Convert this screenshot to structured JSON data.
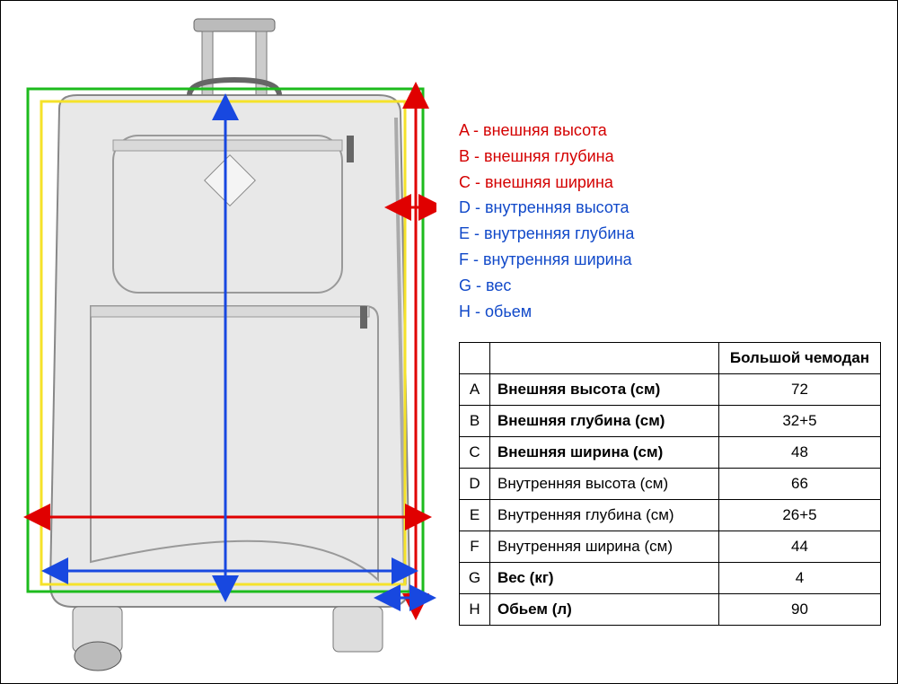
{
  "legend": [
    {
      "letter": "A",
      "text": "внешняя высота",
      "color": "#d40000"
    },
    {
      "letter": "B",
      "text": "внешняя глубина",
      "color": "#d40000"
    },
    {
      "letter": "C",
      "text": "внешняя ширина",
      "color": "#d40000"
    },
    {
      "letter": "D",
      "text": "внутренняя высота",
      "color": "#1149c9"
    },
    {
      "letter": "E",
      "text": "внутренняя глубина",
      "color": "#1149c9"
    },
    {
      "letter": "F",
      "text": "внутренняя ширина",
      "color": "#1149c9"
    },
    {
      "letter": "G",
      "text": "вес",
      "color": "#1149c9"
    },
    {
      "letter": "H",
      "text": "обьем",
      "color": "#1149c9"
    }
  ],
  "table": {
    "header": "Большой чемодан",
    "rows": [
      {
        "letter": "A",
        "label": "Внешняя высота (см)",
        "value": "72",
        "bold": true
      },
      {
        "letter": "B",
        "label": "Внешняя глубина (см)",
        "value": "32+5",
        "bold": true
      },
      {
        "letter": "C",
        "label": "Внешняя ширина (см)",
        "value": "48",
        "bold": true
      },
      {
        "letter": "D",
        "label": "Внутренняя высота (см)",
        "value": "66",
        "bold": false
      },
      {
        "letter": "E",
        "label": "Внутренняя глубина (см)",
        "value": "26+5",
        "bold": false
      },
      {
        "letter": "F",
        "label": "Внутренняя ширина (см)",
        "value": "44",
        "bold": false
      },
      {
        "letter": "G",
        "label": "Вес (кг)",
        "value": "4",
        "bold": true
      },
      {
        "letter": "H",
        "label": "Обьем (л)",
        "value": "90",
        "bold": true
      }
    ]
  },
  "diagram": {
    "suitcase_fill": "#e8e8e8",
    "suitcase_stroke": "#888",
    "arrows": {
      "outer_color": "#e00000",
      "inner_color": "#1848e0",
      "frame_green": "#1dbb1d",
      "frame_yellow": "#f5e22a",
      "stroke_width": 3
    }
  }
}
